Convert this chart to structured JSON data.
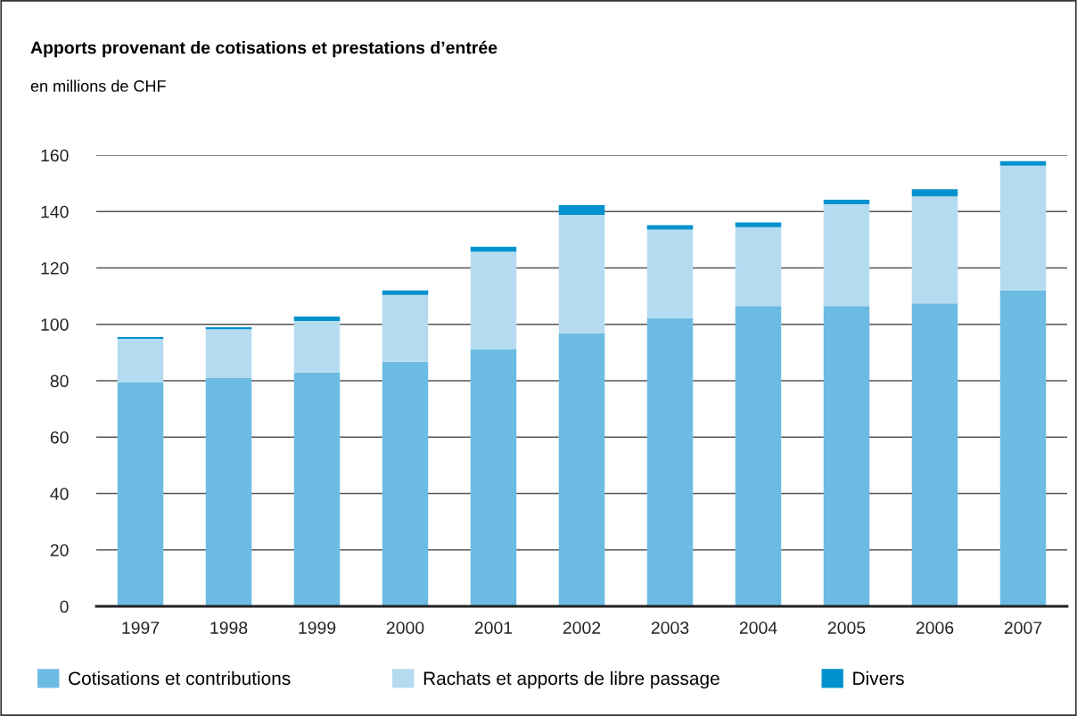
{
  "chart_data": {
    "type": "bar",
    "stacked": true,
    "title": "Apports provenant de cotisations et prestations d’entrée",
    "subtitle": "en millions de CHF",
    "categories": [
      "1997",
      "1998",
      "1999",
      "2000",
      "2001",
      "2002",
      "2003",
      "2004",
      "2005",
      "2006",
      "2007"
    ],
    "series": [
      {
        "name": "Cotisations et contributions",
        "color": "#6cbbe3",
        "values": [
          79.5,
          81.1,
          82.9,
          86.7,
          91.1,
          96.8,
          102.2,
          106.5,
          106.5,
          107.4,
          112.1
        ]
      },
      {
        "name": "Rachats et apports de libre passage",
        "color": "#b5dbf0",
        "values": [
          15.4,
          17.2,
          18.3,
          23.7,
          34.7,
          42.0,
          31.4,
          28.0,
          36.1,
          38.0,
          44.2
        ]
      },
      {
        "name": "Divers",
        "color": "#0091cf",
        "values": [
          0.6,
          0.7,
          1.6,
          1.6,
          1.7,
          3.5,
          1.6,
          1.6,
          1.6,
          2.5,
          1.6
        ]
      }
    ],
    "ylim": [
      0,
      160
    ],
    "yticks": [
      0,
      20,
      40,
      60,
      80,
      100,
      120,
      140,
      160
    ],
    "grid": "y",
    "legend": "bottom"
  }
}
